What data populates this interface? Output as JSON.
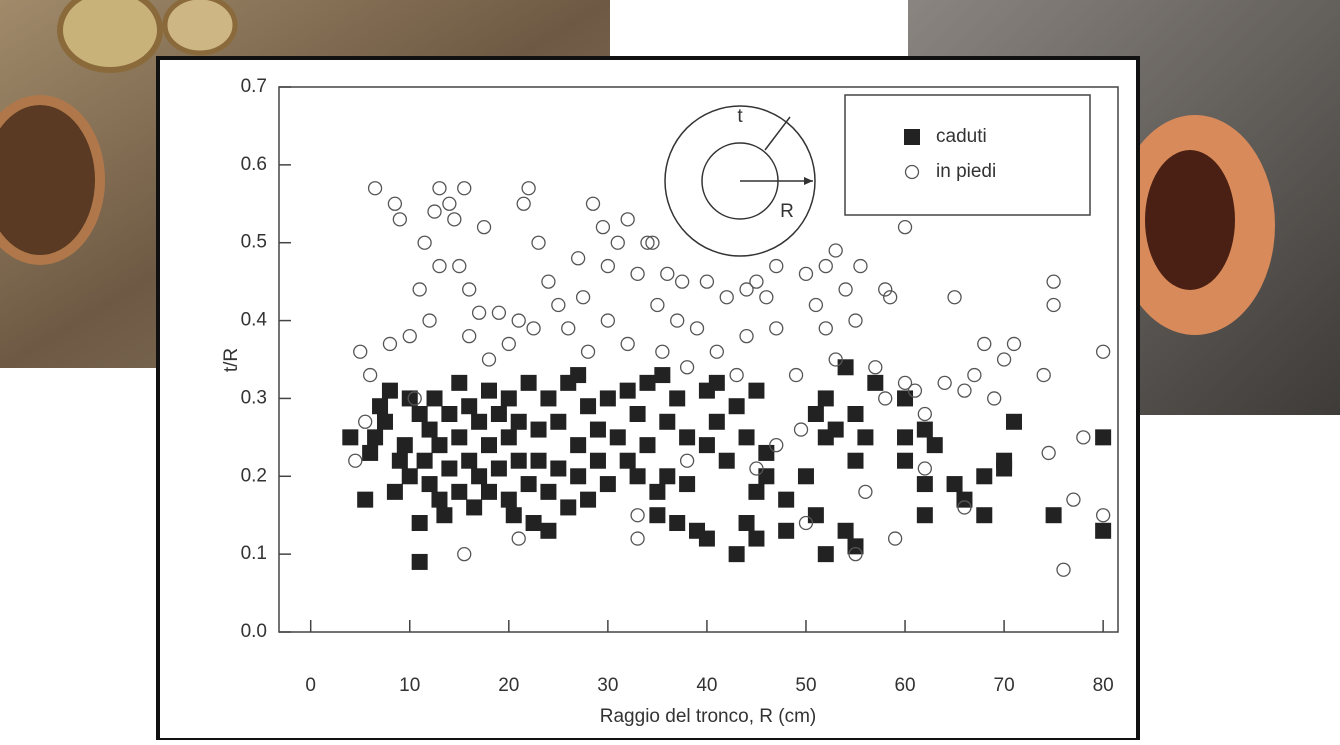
{
  "chart_data": {
    "type": "scatter",
    "x_label": "Raggio del tronco, R (cm)",
    "y_label": "t/R",
    "inset_labels": [
      "t",
      "R"
    ],
    "xlim": [
      -3.2,
      81.5
    ],
    "ylim": [
      0,
      0.7
    ],
    "xticks": [
      0,
      10,
      20,
      30,
      40,
      50,
      60,
      70,
      80
    ],
    "yticks": [
      {
        "value": 0,
        "label": "0.0"
      },
      0.1,
      0.2,
      0.3,
      0.4,
      0.5,
      0.6,
      0.7
    ],
    "legend": "top-right",
    "series": [
      {
        "name": "caduti",
        "color": "#222222",
        "marker": "square",
        "x": [
          4,
          5.5,
          6,
          6.5,
          7,
          7.5,
          8,
          8.5,
          9,
          9.5,
          10,
          10,
          11,
          11,
          11,
          11.5,
          12,
          12,
          12.5,
          13,
          13,
          13.5,
          14,
          14,
          15,
          15,
          15,
          16,
          16,
          16.5,
          17,
          17,
          18,
          18,
          18,
          19,
          19,
          20,
          20,
          20,
          20.5,
          21,
          21,
          22,
          22,
          22.5,
          23,
          23,
          24,
          24,
          24,
          25,
          25,
          26,
          26,
          27,
          27,
          27,
          28,
          28,
          29,
          29,
          30,
          30,
          31,
          32,
          32,
          33,
          33,
          34,
          34,
          35,
          35,
          35.5,
          36,
          36,
          37,
          37,
          38,
          38,
          39,
          40,
          40,
          40,
          41,
          41,
          42,
          43,
          43,
          44,
          44,
          45,
          45,
          45,
          46,
          46,
          48,
          48,
          50,
          51,
          51,
          52,
          52,
          52,
          53,
          54,
          54,
          55,
          55,
          55,
          56,
          57,
          60,
          60,
          60,
          62,
          62,
          62,
          63,
          65,
          66,
          68,
          68,
          70,
          70,
          71,
          75,
          80,
          80
        ],
        "values": [
          0.25,
          0.17,
          0.23,
          0.25,
          0.29,
          0.27,
          0.31,
          0.18,
          0.22,
          0.24,
          0.3,
          0.2,
          0.14,
          0.09,
          0.28,
          0.22,
          0.26,
          0.19,
          0.3,
          0.24,
          0.17,
          0.15,
          0.28,
          0.21,
          0.32,
          0.25,
          0.18,
          0.29,
          0.22,
          0.16,
          0.27,
          0.2,
          0.31,
          0.24,
          0.18,
          0.28,
          0.21,
          0.3,
          0.25,
          0.17,
          0.15,
          0.27,
          0.22,
          0.32,
          0.19,
          0.14,
          0.26,
          0.22,
          0.3,
          0.18,
          0.13,
          0.27,
          0.21,
          0.32,
          0.16,
          0.33,
          0.24,
          0.2,
          0.29,
          0.17,
          0.26,
          0.22,
          0.3,
          0.19,
          0.25,
          0.31,
          0.22,
          0.28,
          0.2,
          0.32,
          0.24,
          0.15,
          0.18,
          0.33,
          0.27,
          0.2,
          0.14,
          0.3,
          0.25,
          0.19,
          0.13,
          0.31,
          0.24,
          0.12,
          0.32,
          0.27,
          0.22,
          0.1,
          0.29,
          0.14,
          0.25,
          0.18,
          0.31,
          0.12,
          0.23,
          0.2,
          0.17,
          0.13,
          0.2,
          0.28,
          0.15,
          0.25,
          0.3,
          0.1,
          0.26,
          0.34,
          0.13,
          0.22,
          0.11,
          0.28,
          0.25,
          0.32,
          0.3,
          0.25,
          0.22,
          0.15,
          0.19,
          0.26,
          0.24,
          0.19,
          0.17,
          0.15,
          0.2,
          0.22,
          0.21,
          0.27,
          0.15,
          0.25,
          0.13
        ]
      },
      {
        "name": "in piedi",
        "color": "#555555",
        "marker": "circle",
        "x": [
          5,
          4.5,
          5.5,
          6,
          6.5,
          8,
          8.5,
          9,
          10,
          10.5,
          11,
          11.5,
          12,
          12.5,
          13,
          13,
          14,
          14.5,
          15,
          15.5,
          15.5,
          16,
          16,
          17,
          17.5,
          18,
          19,
          20,
          21,
          21,
          21.5,
          22,
          22.5,
          23,
          24,
          25,
          26,
          27,
          27.5,
          28,
          28.5,
          29.5,
          30,
          30,
          31,
          32,
          32,
          33,
          33,
          33,
          34,
          34.5,
          35,
          35.5,
          36,
          37,
          37.5,
          38,
          38,
          39,
          40,
          41,
          42,
          43,
          44,
          44,
          45,
          45,
          46,
          47,
          47,
          47,
          49,
          49.5,
          50,
          50,
          51,
          52,
          52,
          53,
          53,
          54,
          55,
          55,
          55.5,
          56,
          57,
          58,
          58,
          58.5,
          59,
          60,
          60,
          61,
          62,
          62,
          64,
          65,
          66,
          66,
          67,
          68,
          69,
          70,
          71,
          74,
          74.5,
          75,
          75,
          76,
          77,
          78,
          80,
          80
        ],
        "values": [
          0.36,
          0.22,
          0.27,
          0.33,
          0.57,
          0.37,
          0.55,
          0.53,
          0.38,
          0.3,
          0.44,
          0.5,
          0.4,
          0.54,
          0.47,
          0.57,
          0.55,
          0.53,
          0.47,
          0.1,
          0.57,
          0.44,
          0.38,
          0.41,
          0.52,
          0.35,
          0.41,
          0.37,
          0.4,
          0.12,
          0.55,
          0.57,
          0.39,
          0.5,
          0.45,
          0.42,
          0.39,
          0.48,
          0.43,
          0.36,
          0.55,
          0.52,
          0.47,
          0.4,
          0.5,
          0.53,
          0.37,
          0.46,
          0.12,
          0.15,
          0.5,
          0.5,
          0.42,
          0.36,
          0.46,
          0.4,
          0.45,
          0.34,
          0.22,
          0.39,
          0.45,
          0.36,
          0.43,
          0.33,
          0.44,
          0.38,
          0.45,
          0.21,
          0.43,
          0.47,
          0.39,
          0.24,
          0.33,
          0.26,
          0.46,
          0.14,
          0.42,
          0.47,
          0.39,
          0.49,
          0.35,
          0.44,
          0.4,
          0.1,
          0.47,
          0.18,
          0.34,
          0.44,
          0.3,
          0.43,
          0.12,
          0.52,
          0.32,
          0.31,
          0.28,
          0.21,
          0.32,
          0.43,
          0.31,
          0.16,
          0.33,
          0.37,
          0.3,
          0.35,
          0.37,
          0.33,
          0.23,
          0.45,
          0.42,
          0.08,
          0.17,
          0.25,
          0.36,
          0.15
        ]
      }
    ]
  }
}
